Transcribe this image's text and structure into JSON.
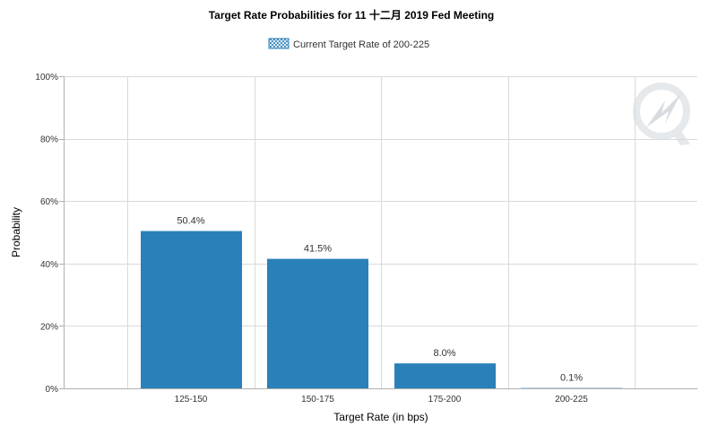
{
  "chart_data": {
    "type": "bar",
    "title": "Target Rate Probabilities for 11 十二月 2019 Fed Meeting",
    "legend": {
      "label": "Current Target Rate of 200-225",
      "placement": "top-center"
    },
    "categories": [
      "125-150",
      "150-175",
      "175-200",
      "200-225"
    ],
    "values": [
      50.4,
      41.5,
      8.0,
      0.1
    ],
    "data_labels": [
      "50.4%",
      "41.5%",
      "8.0%",
      "0.1%"
    ],
    "xlabel": "Target Rate (in bps)",
    "ylabel": "Probability",
    "ylim": [
      0,
      100
    ],
    "yticks": [
      "0%",
      "20%",
      "40%",
      "60%",
      "80%",
      "100%"
    ],
    "ytick_values": [
      0,
      20,
      40,
      60,
      80,
      100
    ],
    "grid": true,
    "colors": {
      "bar": "#2a80b9",
      "grid": "#d9d9d9",
      "axis": "#b0b0b0",
      "text": "#333333",
      "watermark": "#e3e7ea"
    }
  }
}
